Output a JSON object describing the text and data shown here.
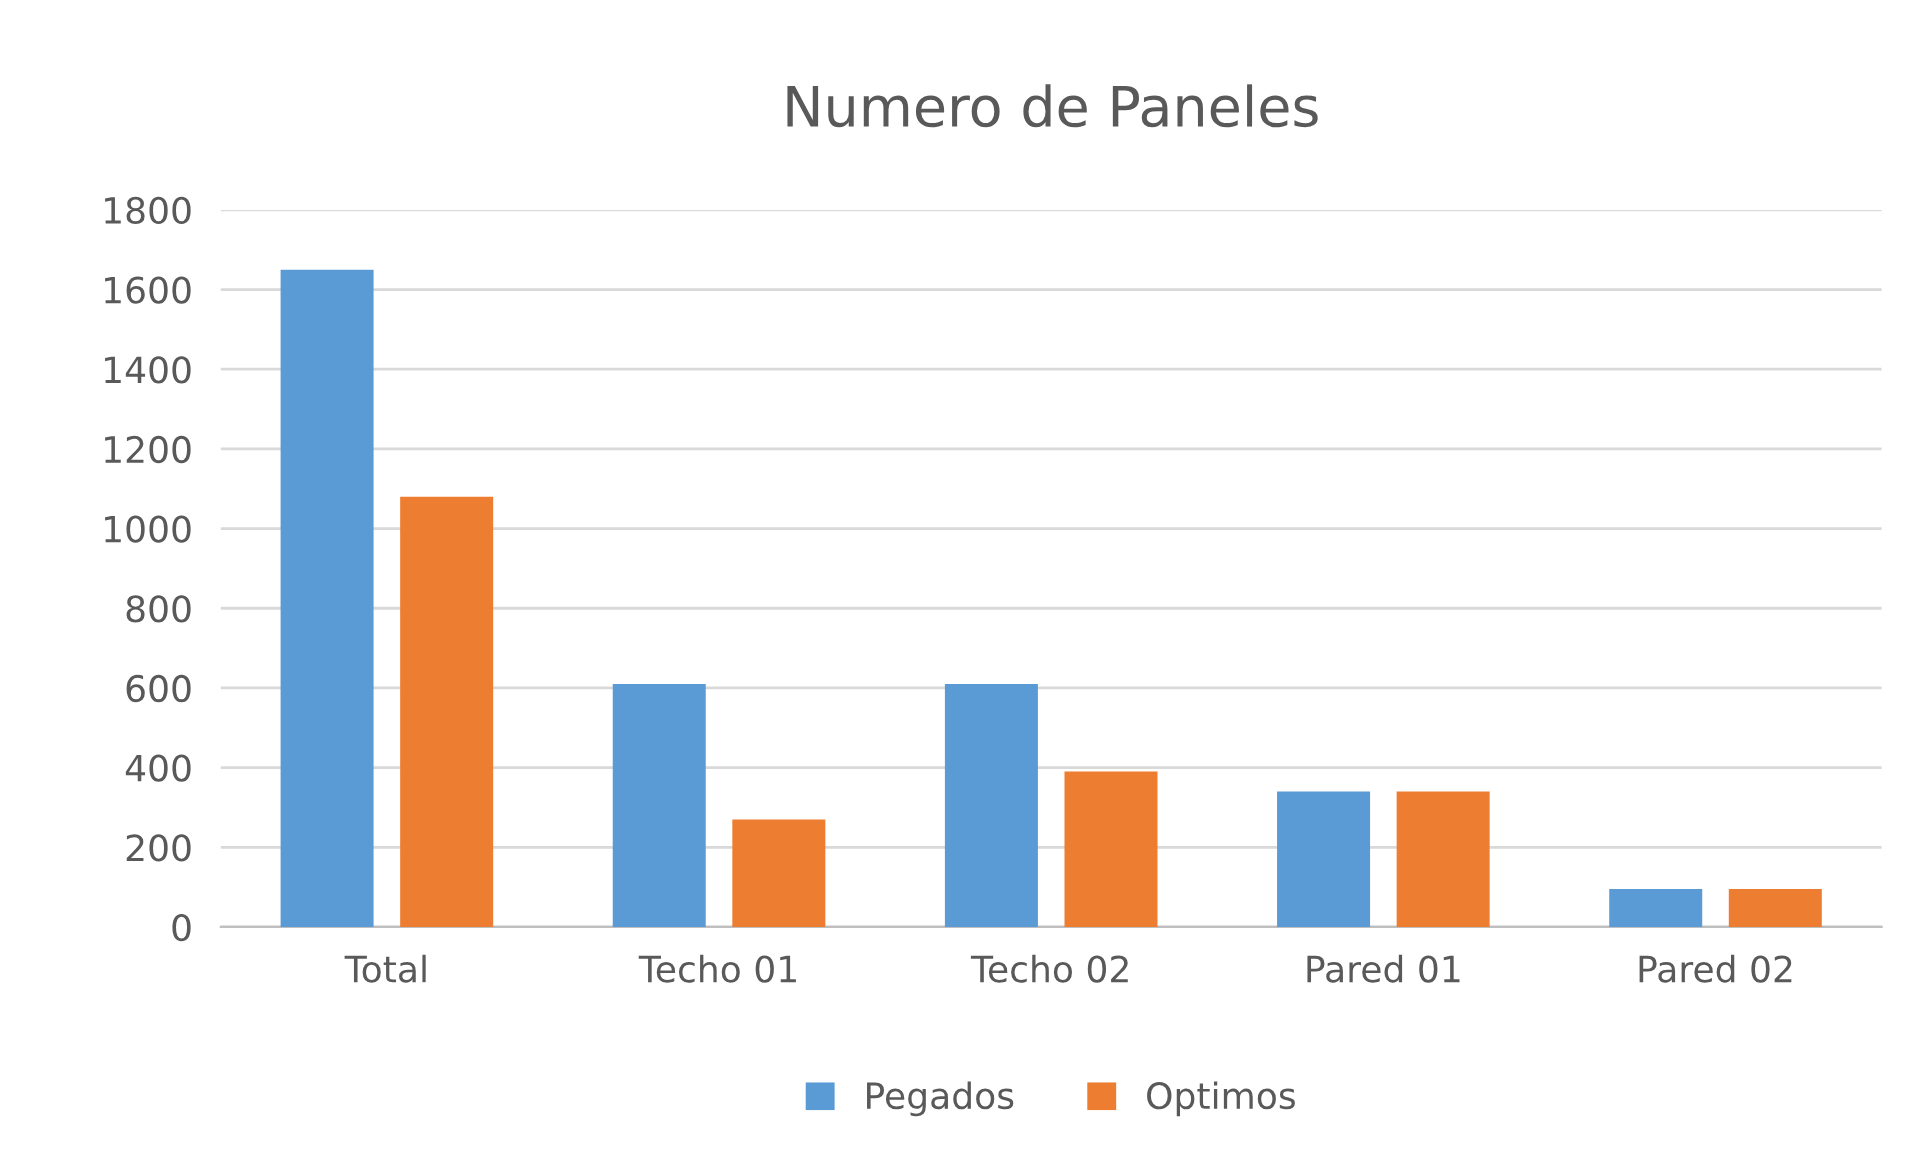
{
  "chart_data": {
    "type": "bar",
    "title": "Numero de Paneles",
    "categories": [
      "Total",
      "Techo 01",
      "Techo 02",
      "Pared 01",
      "Pared 02"
    ],
    "series": [
      {
        "name": "Pegados",
        "color": "#5b9bd5",
        "values": [
          1650,
          610,
          610,
          340,
          95
        ]
      },
      {
        "name": "Optimos",
        "color": "#ed7d31",
        "values": [
          1080,
          270,
          390,
          340,
          95
        ]
      }
    ],
    "ylim": [
      0,
      1800
    ],
    "yticks": [
      0,
      200,
      400,
      600,
      800,
      1000,
      1200,
      1400,
      1600,
      1800
    ],
    "grid": "y",
    "legend": "bottom"
  }
}
